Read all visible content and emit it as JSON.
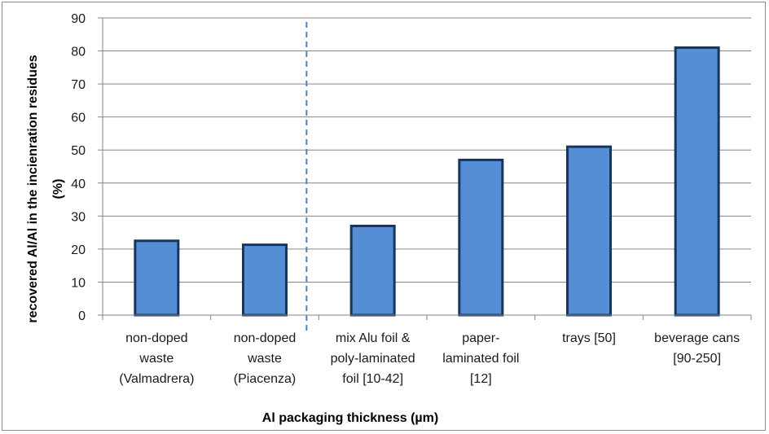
{
  "chart_data": {
    "type": "bar",
    "title": "",
    "categories": [
      [
        "non-doped",
        "waste",
        "(Valmadrera)"
      ],
      [
        "non-doped",
        "waste",
        "(Piacenza)"
      ],
      [
        "mix Alu foil &",
        "poly-laminated",
        "foil [10-42]"
      ],
      [
        "paper-",
        "laminated foil",
        "[12]"
      ],
      [
        "trays [50]"
      ],
      [
        "beverage cans",
        "[90-250]"
      ]
    ],
    "values": [
      22.5,
      21.3,
      27,
      47,
      51,
      81
    ],
    "ylim": [
      0,
      90
    ],
    "yticks": [
      "0",
      "10",
      "20",
      "30",
      "40",
      "50",
      "60",
      "70",
      "80",
      "90"
    ],
    "ylabel_lines": [
      "recovered Al/Al in the incienration residues",
      "(%)"
    ],
    "xlabel": "Al packaging  thickness (µm)",
    "grid": "horizontal",
    "legend": "none",
    "separator_after_category": 2,
    "colors": {
      "bar_fill": "#558ed5",
      "bar_stroke": "#17365d",
      "grid": "#868686",
      "separator": "#4f81bd"
    }
  }
}
